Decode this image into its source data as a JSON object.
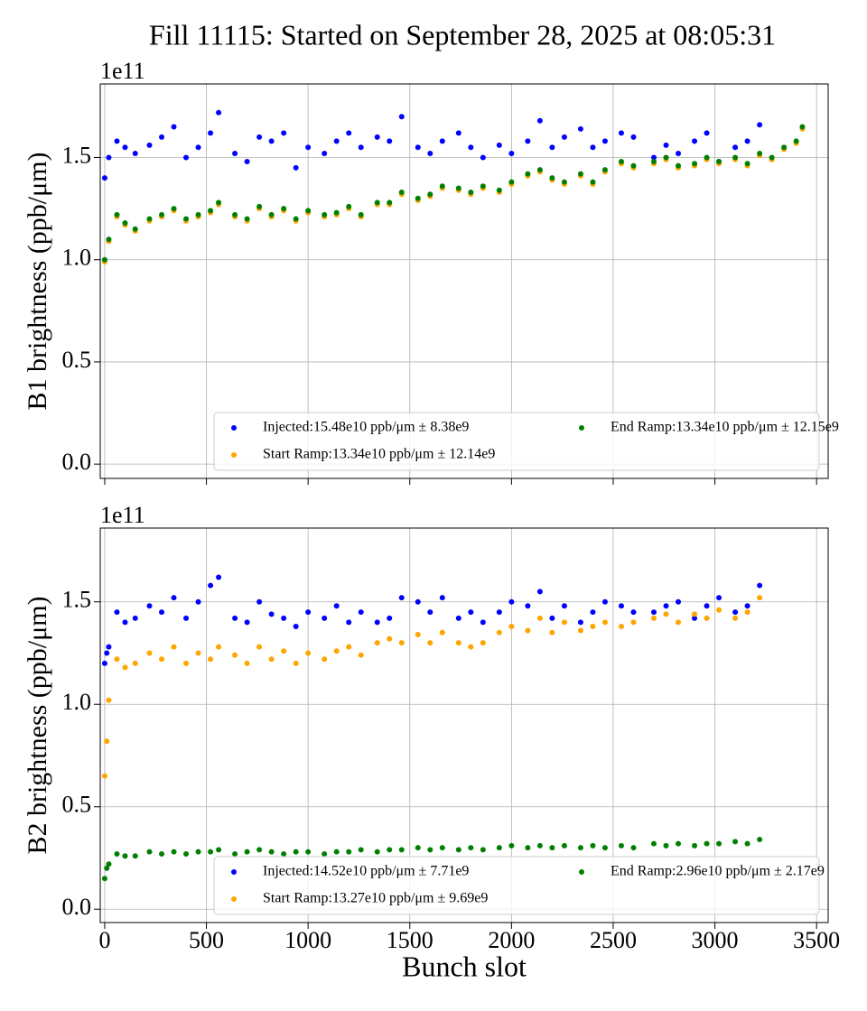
{
  "title": "Fill 11115: Started on September 28, 2025 at 08:05:31",
  "chart_data": [
    {
      "type": "scatter",
      "ylabel": "B1 brightness (ppb/μm)",
      "y_offset_label": "1e11",
      "xlim": [
        -22,
        3557
      ],
      "ylim": [
        -0.07,
        1.86
      ],
      "xticks": [
        0,
        500,
        1000,
        1500,
        2000,
        2500,
        3000,
        3500
      ],
      "yticks": [
        {
          "value": 0,
          "label": "0.0"
        },
        0.5,
        {
          "value": 1,
          "label": "1.0"
        },
        1.5
      ],
      "grid": true,
      "legend": "lower right",
      "x": [
        0,
        20,
        60,
        100,
        150,
        220,
        280,
        340,
        400,
        460,
        520,
        560,
        640,
        700,
        760,
        820,
        880,
        940,
        1000,
        1080,
        1140,
        1200,
        1260,
        1340,
        1400,
        1460,
        1540,
        1600,
        1660,
        1740,
        1800,
        1860,
        1940,
        2000,
        2080,
        2140,
        2200,
        2260,
        2340,
        2400,
        2460,
        2540,
        2600,
        2700,
        2760,
        2820,
        2900,
        2960,
        3020,
        3100,
        3160,
        3220,
        3280,
        3340,
        3400,
        3430
      ],
      "series": [
        {
          "name": "Injected:15.48e10 ppb/μm ± 8.38e9",
          "color": "#0000ff",
          "values": [
            1.4,
            1.5,
            1.58,
            1.55,
            1.52,
            1.56,
            1.6,
            1.65,
            1.5,
            1.55,
            1.62,
            1.72,
            1.52,
            1.48,
            1.6,
            1.58,
            1.62,
            1.45,
            1.55,
            1.52,
            1.58,
            1.62,
            1.55,
            1.6,
            1.58,
            1.7,
            1.55,
            1.52,
            1.58,
            1.62,
            1.55,
            1.5,
            1.56,
            1.52,
            1.58,
            1.68,
            1.55,
            1.6,
            1.64,
            1.55,
            1.58,
            1.62,
            1.6,
            1.5,
            1.56,
            1.52,
            1.58,
            1.62,
            1.48,
            1.55,
            1.58,
            1.66,
            null,
            null,
            null,
            null
          ]
        },
        {
          "name": "Start Ramp:13.34e10 ppb/μm ± 12.14e9",
          "color": "#ffa500",
          "values": [
            0.99,
            1.09,
            1.21,
            1.17,
            1.14,
            1.19,
            1.21,
            1.24,
            1.19,
            1.21,
            1.23,
            1.27,
            1.21,
            1.19,
            1.25,
            1.21,
            1.24,
            1.19,
            1.23,
            1.21,
            1.22,
            1.25,
            1.21,
            1.27,
            1.27,
            1.32,
            1.29,
            1.31,
            1.35,
            1.34,
            1.32,
            1.35,
            1.33,
            1.37,
            1.41,
            1.43,
            1.39,
            1.37,
            1.41,
            1.37,
            1.43,
            1.47,
            1.45,
            1.47,
            1.49,
            1.45,
            1.46,
            1.49,
            1.47,
            1.49,
            1.46,
            1.51,
            1.49,
            1.54,
            1.57,
            1.64
          ]
        },
        {
          "name": "End Ramp:13.34e10 ppb/μm ± 12.15e9",
          "color": "#008000",
          "values": [
            1.0,
            1.1,
            1.22,
            1.18,
            1.15,
            1.2,
            1.22,
            1.25,
            1.2,
            1.22,
            1.24,
            1.28,
            1.22,
            1.2,
            1.26,
            1.22,
            1.25,
            1.2,
            1.24,
            1.22,
            1.23,
            1.26,
            1.22,
            1.28,
            1.28,
            1.33,
            1.3,
            1.32,
            1.36,
            1.35,
            1.33,
            1.36,
            1.34,
            1.38,
            1.42,
            1.44,
            1.4,
            1.38,
            1.42,
            1.38,
            1.44,
            1.48,
            1.46,
            1.48,
            1.5,
            1.46,
            1.47,
            1.5,
            1.48,
            1.5,
            1.47,
            1.52,
            1.5,
            1.55,
            1.58,
            1.65
          ]
        }
      ]
    },
    {
      "type": "scatter",
      "ylabel": "B2 brightness (ppb/μm)",
      "y_offset_label": "1e11",
      "xlabel": "Bunch slot",
      "xlim": [
        -22,
        3557
      ],
      "ylim": [
        -0.065,
        1.86
      ],
      "xticks": [
        0,
        500,
        1000,
        1500,
        2000,
        2500,
        3000,
        3500
      ],
      "yticks": [
        {
          "value": 0,
          "label": "0.0"
        },
        0.5,
        {
          "value": 1,
          "label": "1.0"
        },
        1.5
      ],
      "grid": true,
      "legend": "lower right",
      "x": [
        0,
        10,
        20,
        60,
        100,
        150,
        220,
        280,
        340,
        400,
        460,
        520,
        560,
        640,
        700,
        760,
        820,
        880,
        940,
        1000,
        1080,
        1140,
        1200,
        1260,
        1340,
        1400,
        1460,
        1540,
        1600,
        1660,
        1740,
        1800,
        1860,
        1940,
        2000,
        2080,
        2140,
        2200,
        2260,
        2340,
        2400,
        2460,
        2540,
        2600,
        2700,
        2760,
        2820,
        2900,
        2960,
        3020,
        3100,
        3160,
        3220
      ],
      "series": [
        {
          "name": "Injected:14.52e10 ppb/μm ± 7.71e9",
          "color": "#0000ff",
          "values": [
            1.2,
            1.25,
            1.28,
            1.45,
            1.4,
            1.42,
            1.48,
            1.45,
            1.52,
            1.42,
            1.5,
            1.58,
            1.62,
            1.42,
            1.4,
            1.5,
            1.44,
            1.42,
            1.38,
            1.45,
            1.42,
            1.48,
            1.4,
            1.45,
            1.4,
            1.42,
            1.52,
            1.5,
            1.45,
            1.52,
            1.42,
            1.45,
            1.4,
            1.45,
            1.5,
            1.48,
            1.55,
            1.42,
            1.48,
            1.4,
            1.45,
            1.5,
            1.48,
            1.45,
            1.45,
            1.48,
            1.5,
            1.42,
            1.48,
            1.52,
            1.45,
            1.48,
            1.58
          ]
        },
        {
          "name": "Start Ramp:13.27e10 ppb/μm ± 9.69e9",
          "color": "#ffa500",
          "values": [
            0.65,
            0.82,
            1.02,
            1.22,
            1.18,
            1.2,
            1.25,
            1.22,
            1.28,
            1.2,
            1.25,
            1.22,
            1.28,
            1.24,
            1.2,
            1.28,
            1.22,
            1.26,
            1.2,
            1.25,
            1.22,
            1.26,
            1.28,
            1.24,
            1.3,
            1.32,
            1.3,
            1.34,
            1.3,
            1.35,
            1.3,
            1.28,
            1.3,
            1.35,
            1.38,
            1.36,
            1.42,
            1.35,
            1.4,
            1.36,
            1.38,
            1.4,
            1.38,
            1.4,
            1.42,
            1.44,
            1.4,
            1.44,
            1.42,
            1.46,
            1.42,
            1.45,
            1.52
          ]
        },
        {
          "name": "End Ramp:2.96e10 ppb/μm ± 2.17e9",
          "color": "#008000",
          "values": [
            0.15,
            0.2,
            0.22,
            0.27,
            0.26,
            0.26,
            0.28,
            0.27,
            0.28,
            0.27,
            0.28,
            0.28,
            0.29,
            0.27,
            0.28,
            0.29,
            0.28,
            0.27,
            0.28,
            0.28,
            0.27,
            0.28,
            0.28,
            0.29,
            0.28,
            0.29,
            0.29,
            0.3,
            0.29,
            0.3,
            0.29,
            0.3,
            0.29,
            0.3,
            0.31,
            0.3,
            0.31,
            0.3,
            0.31,
            0.3,
            0.31,
            0.3,
            0.31,
            0.3,
            0.32,
            0.31,
            0.32,
            0.31,
            0.32,
            0.32,
            0.33,
            0.32,
            0.34
          ]
        }
      ]
    }
  ]
}
